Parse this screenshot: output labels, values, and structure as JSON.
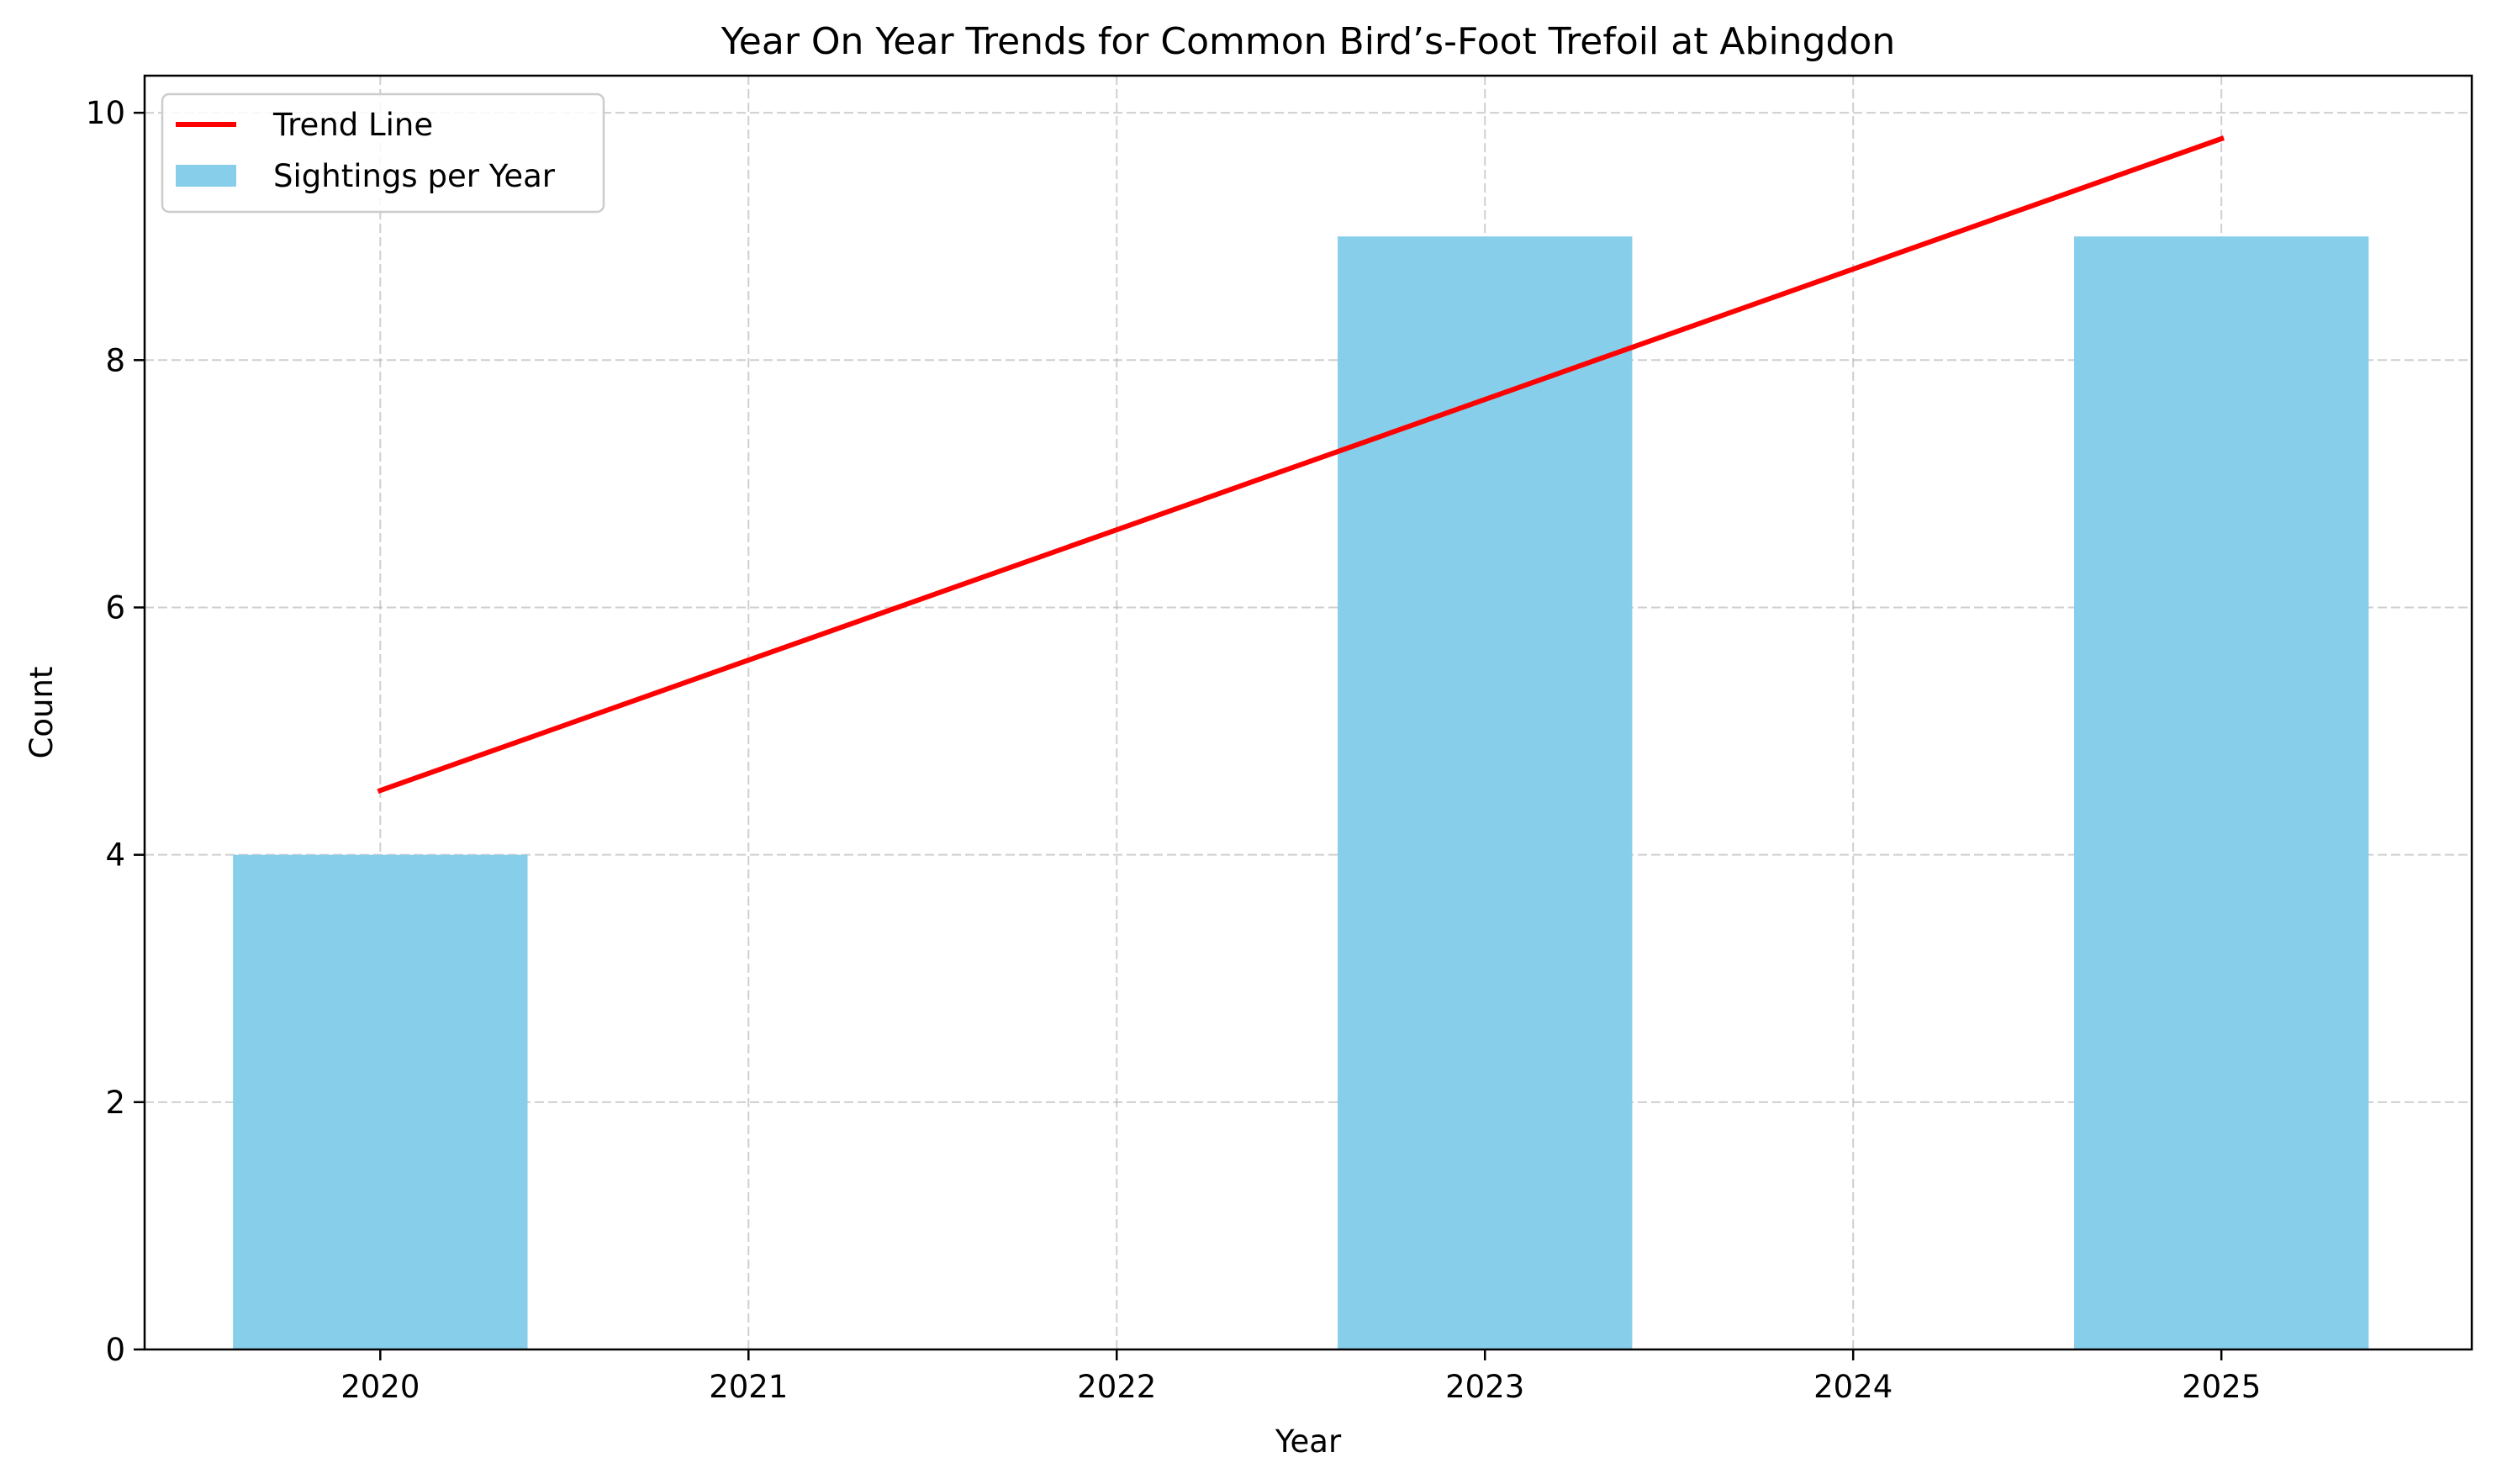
{
  "chart_data": {
    "type": "bar",
    "title": "Year On Year Trends for Common Bird’s-Foot Trefoil at Abingdon",
    "xlabel": "Year",
    "ylabel": "Count",
    "categories": [
      "2020",
      "2021",
      "2022",
      "2023",
      "2024",
      "2025"
    ],
    "x": [
      2020,
      2021,
      2022,
      2023,
      2024,
      2025
    ],
    "xlim": [
      2019.36,
      2025.68
    ],
    "ylim": [
      0,
      10.3
    ],
    "yticks": [
      0,
      2,
      4,
      6,
      8,
      10
    ],
    "ytick_labels": [
      "0",
      "2",
      "4",
      "6",
      "8",
      "10"
    ],
    "bar_width": 0.8,
    "grid": true,
    "legend_position": "top-left",
    "series": [
      {
        "name": "Sightings per Year",
        "kind": "bar",
        "color": "#87ceeb",
        "values": [
          4,
          0,
          0,
          9,
          0,
          9
        ]
      },
      {
        "name": "Trend Line",
        "kind": "line",
        "color": "#ff0000",
        "x": [
          2020,
          2025
        ],
        "values": [
          4.52,
          9.79
        ]
      }
    ]
  }
}
